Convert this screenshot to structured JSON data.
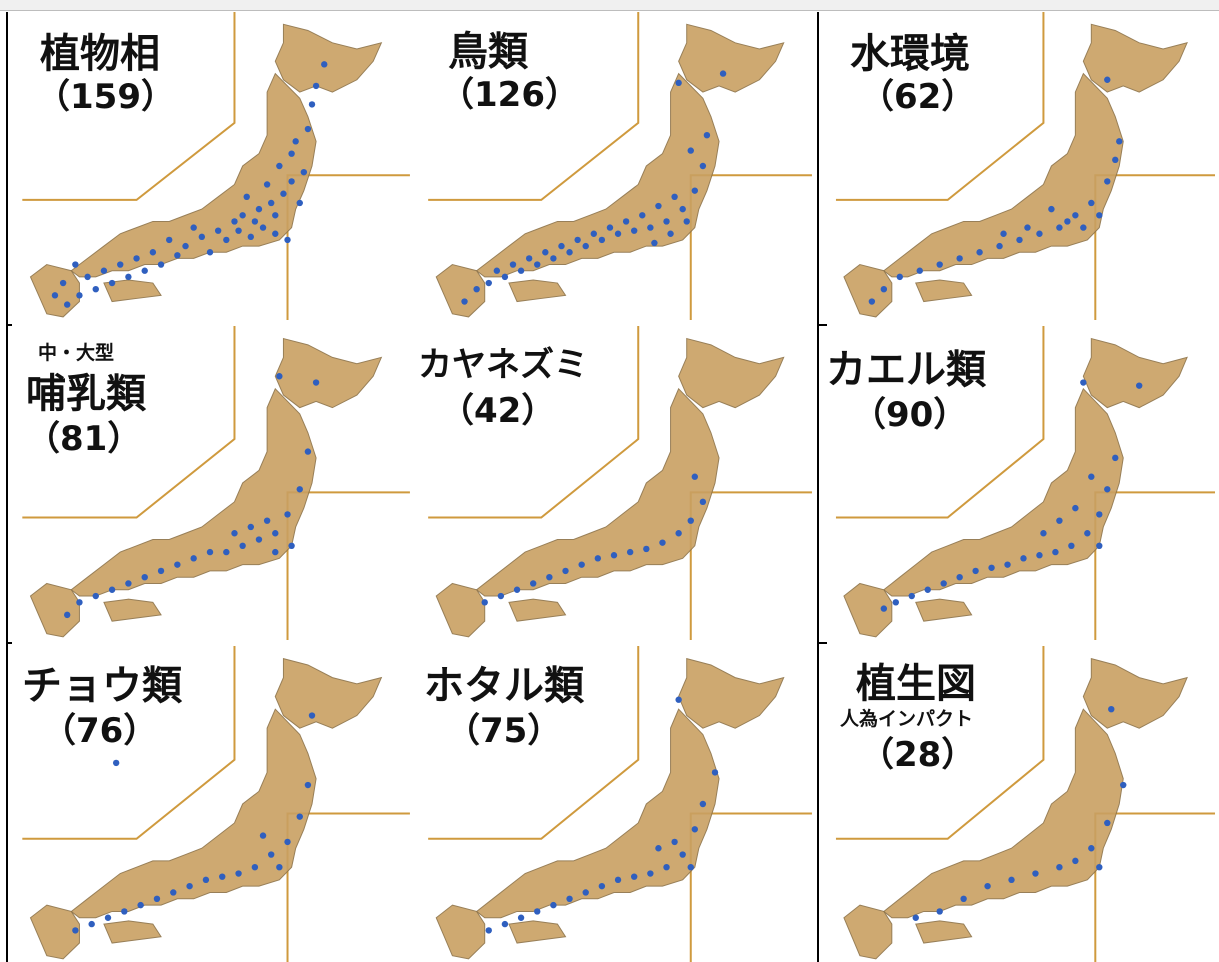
{
  "colors": {
    "land": "#c9a062",
    "border": "#cf9a3e",
    "point": "#2f5fbf",
    "frame": "#000000"
  },
  "panels": [
    {
      "id": "flora",
      "title": "植物相",
      "count": "（159）",
      "points": [
        [
          0.78,
          0.17
        ],
        [
          0.74,
          0.38
        ],
        [
          0.73,
          0.52
        ],
        [
          0.72,
          0.62
        ],
        [
          0.7,
          0.55
        ],
        [
          0.66,
          0.66
        ],
        [
          0.63,
          0.7
        ],
        [
          0.6,
          0.73
        ],
        [
          0.56,
          0.68
        ],
        [
          0.52,
          0.71
        ],
        [
          0.48,
          0.73
        ],
        [
          0.44,
          0.76
        ],
        [
          0.4,
          0.74
        ],
        [
          0.36,
          0.78
        ],
        [
          0.32,
          0.8
        ],
        [
          0.28,
          0.82
        ],
        [
          0.24,
          0.84
        ],
        [
          0.2,
          0.86
        ],
        [
          0.17,
          0.82
        ],
        [
          0.14,
          0.88
        ],
        [
          0.12,
          0.92
        ],
        [
          0.68,
          0.59
        ],
        [
          0.65,
          0.62
        ],
        [
          0.62,
          0.64
        ],
        [
          0.59,
          0.6
        ],
        [
          0.58,
          0.66
        ],
        [
          0.54,
          0.74
        ],
        [
          0.5,
          0.78
        ],
        [
          0.46,
          0.7
        ],
        [
          0.7,
          0.46
        ],
        [
          0.71,
          0.42
        ],
        [
          0.75,
          0.3
        ],
        [
          0.76,
          0.24
        ],
        [
          0.69,
          0.74
        ],
        [
          0.66,
          0.72
        ],
        [
          0.67,
          0.5
        ],
        [
          0.64,
          0.56
        ],
        [
          0.61,
          0.68
        ],
        [
          0.57,
          0.71
        ],
        [
          0.42,
          0.79
        ],
        [
          0.38,
          0.82
        ],
        [
          0.34,
          0.84
        ],
        [
          0.3,
          0.86
        ],
        [
          0.26,
          0.88
        ],
        [
          0.22,
          0.9
        ],
        [
          0.18,
          0.92
        ],
        [
          0.15,
          0.95
        ]
      ]
    },
    {
      "id": "birds",
      "title": "鳥類",
      "count": "（126）",
      "points": [
        [
          0.66,
          0.23
        ],
        [
          0.77,
          0.2
        ],
        [
          0.73,
          0.4
        ],
        [
          0.72,
          0.5
        ],
        [
          0.7,
          0.58
        ],
        [
          0.67,
          0.64
        ],
        [
          0.63,
          0.68
        ],
        [
          0.59,
          0.7
        ],
        [
          0.55,
          0.71
        ],
        [
          0.51,
          0.72
        ],
        [
          0.47,
          0.74
        ],
        [
          0.43,
          0.76
        ],
        [
          0.39,
          0.78
        ],
        [
          0.35,
          0.8
        ],
        [
          0.31,
          0.82
        ],
        [
          0.27,
          0.84
        ],
        [
          0.23,
          0.86
        ],
        [
          0.19,
          0.88
        ],
        [
          0.16,
          0.9
        ],
        [
          0.13,
          0.94
        ],
        [
          0.69,
          0.45
        ],
        [
          0.65,
          0.6
        ],
        [
          0.61,
          0.63
        ],
        [
          0.57,
          0.66
        ],
        [
          0.53,
          0.68
        ],
        [
          0.49,
          0.7
        ],
        [
          0.45,
          0.72
        ],
        [
          0.41,
          0.74
        ],
        [
          0.37,
          0.76
        ],
        [
          0.33,
          0.78
        ],
        [
          0.29,
          0.8
        ],
        [
          0.25,
          0.82
        ],
        [
          0.21,
          0.84
        ],
        [
          0.68,
          0.68
        ],
        [
          0.64,
          0.72
        ],
        [
          0.6,
          0.75
        ]
      ]
    },
    {
      "id": "water",
      "title": "水環境",
      "count": "（62）",
      "points": [
        [
          0.72,
          0.22
        ],
        [
          0.75,
          0.42
        ],
        [
          0.72,
          0.55
        ],
        [
          0.68,
          0.62
        ],
        [
          0.64,
          0.66
        ],
        [
          0.6,
          0.7
        ],
        [
          0.55,
          0.72
        ],
        [
          0.5,
          0.74
        ],
        [
          0.45,
          0.76
        ],
        [
          0.4,
          0.78
        ],
        [
          0.35,
          0.8
        ],
        [
          0.3,
          0.82
        ],
        [
          0.25,
          0.84
        ],
        [
          0.2,
          0.86
        ],
        [
          0.16,
          0.9
        ],
        [
          0.13,
          0.94
        ],
        [
          0.7,
          0.66
        ],
        [
          0.66,
          0.7
        ],
        [
          0.62,
          0.68
        ],
        [
          0.58,
          0.64
        ],
        [
          0.52,
          0.7
        ],
        [
          0.46,
          0.72
        ],
        [
          0.74,
          0.48
        ]
      ]
    },
    {
      "id": "mammals",
      "prefix": "中・大型",
      "title": "哺乳類",
      "count": "（81）",
      "points": [
        [
          0.67,
          0.16
        ],
        [
          0.76,
          0.18
        ],
        [
          0.74,
          0.4
        ],
        [
          0.72,
          0.52
        ],
        [
          0.69,
          0.6
        ],
        [
          0.66,
          0.66
        ],
        [
          0.62,
          0.68
        ],
        [
          0.58,
          0.7
        ],
        [
          0.54,
          0.72
        ],
        [
          0.5,
          0.72
        ],
        [
          0.46,
          0.74
        ],
        [
          0.42,
          0.76
        ],
        [
          0.38,
          0.78
        ],
        [
          0.34,
          0.8
        ],
        [
          0.3,
          0.82
        ],
        [
          0.26,
          0.84
        ],
        [
          0.22,
          0.86
        ],
        [
          0.18,
          0.88
        ],
        [
          0.15,
          0.92
        ],
        [
          0.7,
          0.7
        ],
        [
          0.66,
          0.72
        ],
        [
          0.64,
          0.62
        ],
        [
          0.6,
          0.64
        ],
        [
          0.56,
          0.66
        ]
      ]
    },
    {
      "id": "harvestmouse",
      "title": "カヤネズミ",
      "count": "（42）",
      "points": [
        [
          0.72,
          0.56
        ],
        [
          0.69,
          0.62
        ],
        [
          0.66,
          0.66
        ],
        [
          0.62,
          0.69
        ],
        [
          0.58,
          0.71
        ],
        [
          0.54,
          0.72
        ],
        [
          0.5,
          0.73
        ],
        [
          0.46,
          0.74
        ],
        [
          0.42,
          0.76
        ],
        [
          0.38,
          0.78
        ],
        [
          0.34,
          0.8
        ],
        [
          0.3,
          0.82
        ],
        [
          0.26,
          0.84
        ],
        [
          0.22,
          0.86
        ],
        [
          0.18,
          0.88
        ],
        [
          0.7,
          0.48
        ]
      ]
    },
    {
      "id": "frogs",
      "title": "カエル類",
      "count": "（90）",
      "points": [
        [
          0.66,
          0.18
        ],
        [
          0.8,
          0.19
        ],
        [
          0.74,
          0.42
        ],
        [
          0.72,
          0.52
        ],
        [
          0.7,
          0.6
        ],
        [
          0.67,
          0.66
        ],
        [
          0.63,
          0.7
        ],
        [
          0.59,
          0.72
        ],
        [
          0.55,
          0.73
        ],
        [
          0.51,
          0.74
        ],
        [
          0.47,
          0.76
        ],
        [
          0.43,
          0.77
        ],
        [
          0.39,
          0.78
        ],
        [
          0.35,
          0.8
        ],
        [
          0.31,
          0.82
        ],
        [
          0.27,
          0.84
        ],
        [
          0.23,
          0.86
        ],
        [
          0.19,
          0.88
        ],
        [
          0.16,
          0.9
        ],
        [
          0.68,
          0.48
        ],
        [
          0.64,
          0.58
        ],
        [
          0.6,
          0.62
        ],
        [
          0.56,
          0.66
        ],
        [
          0.7,
          0.7
        ]
      ]
    },
    {
      "id": "butterflies",
      "title": "チョウ類",
      "count": "（76）",
      "points": [
        [
          0.75,
          0.22
        ],
        [
          0.74,
          0.44
        ],
        [
          0.72,
          0.54
        ],
        [
          0.69,
          0.62
        ],
        [
          0.65,
          0.66
        ],
        [
          0.61,
          0.7
        ],
        [
          0.57,
          0.72
        ],
        [
          0.53,
          0.73
        ],
        [
          0.49,
          0.74
        ],
        [
          0.45,
          0.76
        ],
        [
          0.41,
          0.78
        ],
        [
          0.37,
          0.8
        ],
        [
          0.33,
          0.82
        ],
        [
          0.29,
          0.84
        ],
        [
          0.25,
          0.86
        ],
        [
          0.21,
          0.88
        ],
        [
          0.17,
          0.9
        ],
        [
          0.27,
          0.37
        ],
        [
          0.67,
          0.7
        ],
        [
          0.63,
          0.6
        ]
      ]
    },
    {
      "id": "fireflies",
      "title": "ホタル類",
      "count": "（75）",
      "points": [
        [
          0.66,
          0.17
        ],
        [
          0.75,
          0.4
        ],
        [
          0.72,
          0.5
        ],
        [
          0.7,
          0.58
        ],
        [
          0.67,
          0.66
        ],
        [
          0.63,
          0.7
        ],
        [
          0.59,
          0.72
        ],
        [
          0.55,
          0.73
        ],
        [
          0.51,
          0.74
        ],
        [
          0.47,
          0.76
        ],
        [
          0.43,
          0.78
        ],
        [
          0.39,
          0.8
        ],
        [
          0.35,
          0.82
        ],
        [
          0.31,
          0.84
        ],
        [
          0.27,
          0.86
        ],
        [
          0.23,
          0.88
        ],
        [
          0.19,
          0.9
        ],
        [
          0.69,
          0.7
        ],
        [
          0.65,
          0.62
        ],
        [
          0.61,
          0.64
        ]
      ]
    },
    {
      "id": "vegetation",
      "title": "植生図",
      "subtitle": "人為インパクト",
      "count": "（28）",
      "points": [
        [
          0.73,
          0.2
        ],
        [
          0.76,
          0.44
        ],
        [
          0.72,
          0.56
        ],
        [
          0.68,
          0.64
        ],
        [
          0.64,
          0.68
        ],
        [
          0.6,
          0.7
        ],
        [
          0.54,
          0.72
        ],
        [
          0.48,
          0.74
        ],
        [
          0.42,
          0.76
        ],
        [
          0.36,
          0.8
        ],
        [
          0.3,
          0.84
        ],
        [
          0.24,
          0.86
        ],
        [
          0.7,
          0.7
        ]
      ]
    }
  ]
}
